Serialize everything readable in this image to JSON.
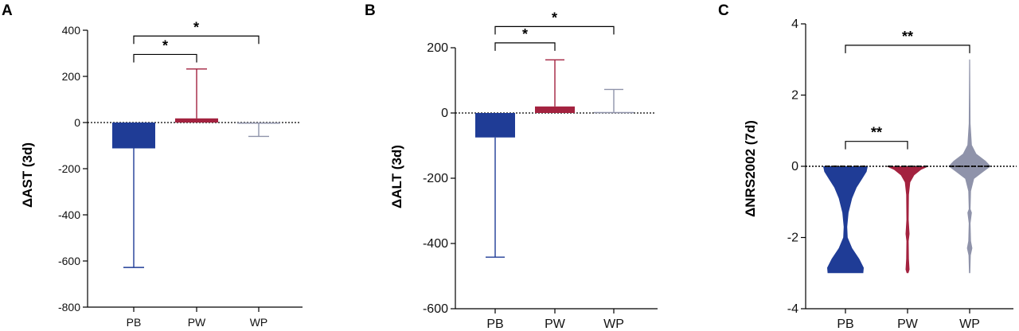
{
  "chart_data": [
    {
      "panel": "A",
      "type": "bar",
      "ylabel": "ΔAST (3d)",
      "ylim": [
        -800,
        400
      ],
      "yticks": [
        400,
        200,
        0,
        -200,
        -400,
        -600,
        -800
      ],
      "categories": [
        "PB",
        "PW",
        "WP"
      ],
      "values": [
        -112,
        18,
        0
      ],
      "error": [
        {
          "end": -628
        },
        {
          "end": 232
        },
        {
          "end": -60
        }
      ],
      "colors": [
        "#1f3c96",
        "#a3223f",
        "#8f93aa"
      ],
      "significance": [
        {
          "from": "PB",
          "to": "PW",
          "label": "*",
          "y": 295
        },
        {
          "from": "PB",
          "to": "WP",
          "label": "*",
          "y": 375
        }
      ]
    },
    {
      "panel": "B",
      "type": "bar",
      "ylabel": "ΔALT (3d)",
      "ylim": [
        -600,
        200
      ],
      "yticks": [
        200,
        0,
        -200,
        -400,
        -600
      ],
      "categories": [
        "PB",
        "PW",
        "WP"
      ],
      "values": [
        -75,
        20,
        3
      ],
      "error": [
        {
          "end": -442
        },
        {
          "end": 163
        },
        {
          "end": 72
        }
      ],
      "colors": [
        "#1f3c96",
        "#a3223f",
        "#8f93aa"
      ],
      "significance": [
        {
          "from": "PB",
          "to": "PW",
          "label": "*",
          "y": 215
        },
        {
          "from": "PB",
          "to": "WP",
          "label": "*",
          "y": 265
        }
      ]
    },
    {
      "panel": "C",
      "type": "violin",
      "ylabel": "ΔNRS2002 (7d)",
      "ylim": [
        -4,
        4
      ],
      "yticks": [
        4,
        2,
        0,
        -2,
        -4
      ],
      "categories": [
        "PB",
        "PW",
        "WP"
      ],
      "colors": [
        "#1f3c96",
        "#a3223f",
        "#8f93aa"
      ],
      "ranges": [
        [
          -3,
          0
        ],
        [
          -3,
          0
        ],
        [
          -3,
          3
        ]
      ],
      "significance": [
        {
          "from": "PB",
          "to": "PW",
          "label": "**",
          "y": 0.7
        },
        {
          "from": "PB",
          "to": "WP",
          "label": "**",
          "y": 3.4
        }
      ]
    }
  ]
}
